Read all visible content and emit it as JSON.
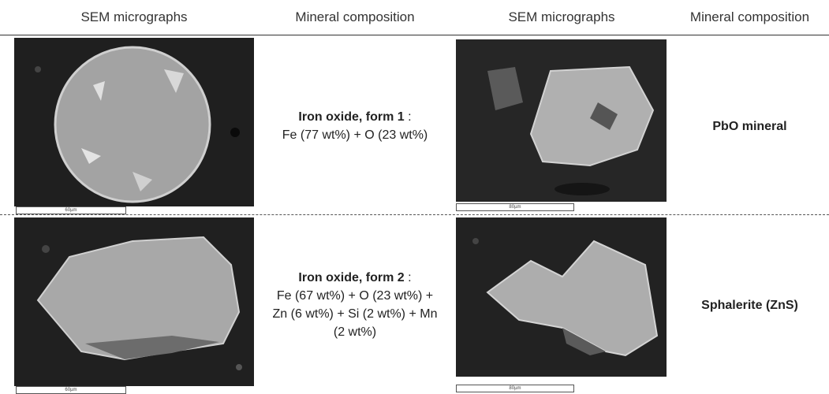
{
  "table": {
    "header": [
      "SEM micrographs",
      "Mineral composition",
      "SEM micrographs",
      "Mineral composition"
    ],
    "rows": [
      [
        {
          "scale_bar": "60µm",
          "mineral": {
            "title": "Iron oxide, form 1",
            "suffix": ":",
            "composition": "Fe (77 wt%) + O (23 wt%)"
          }
        },
        {
          "scale_bar": "80µm",
          "mineral": {
            "title": "PbO mineral"
          }
        }
      ],
      [
        {
          "scale_bar": "60µm",
          "mineral": {
            "title": "Iron oxide, form 2",
            "suffix": ":",
            "composition": "Fe (67 wt%) + O (23 wt%) + Zn (6 wt%) + Si (2 wt%) + Mn (2 wt%)"
          }
        },
        {
          "scale_bar": "80µm",
          "mineral": {
            "title": "Sphalerite (ZnS)"
          }
        }
      ]
    ]
  }
}
